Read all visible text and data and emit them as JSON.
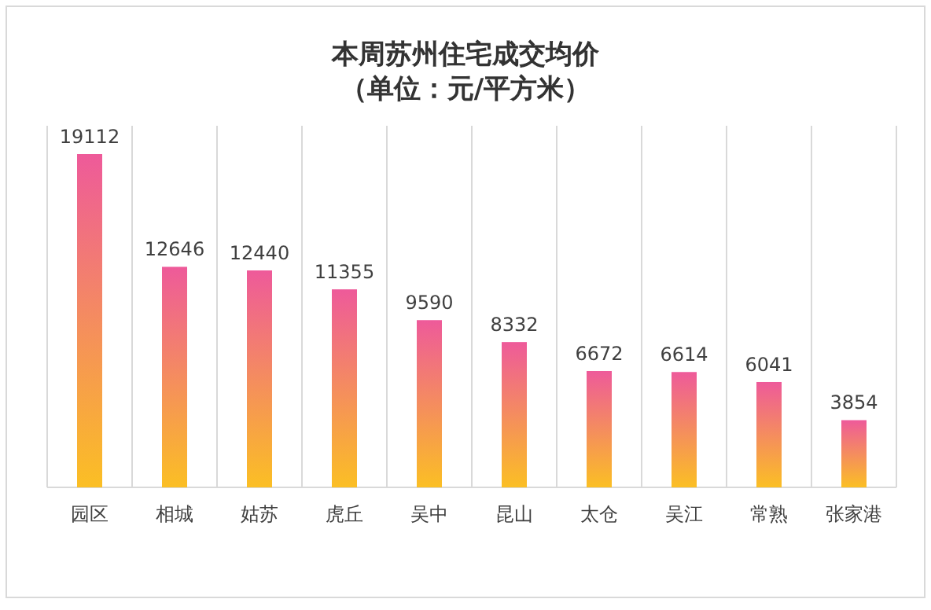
{
  "chart_data": {
    "type": "bar",
    "title": "本周苏州住宅成交均价",
    "subtitle": "（单位：元/平方米）",
    "categories": [
      "园区",
      "相城",
      "姑苏",
      "虎丘",
      "吴中",
      "昆山",
      "太仓",
      "吴江",
      "常熟",
      "张家港"
    ],
    "values": [
      19112,
      12646,
      12440,
      11355,
      9590,
      8332,
      6672,
      6614,
      6041,
      3854
    ],
    "color": "#ee5a9a",
    "data_labels": true,
    "grid": "x"
  }
}
